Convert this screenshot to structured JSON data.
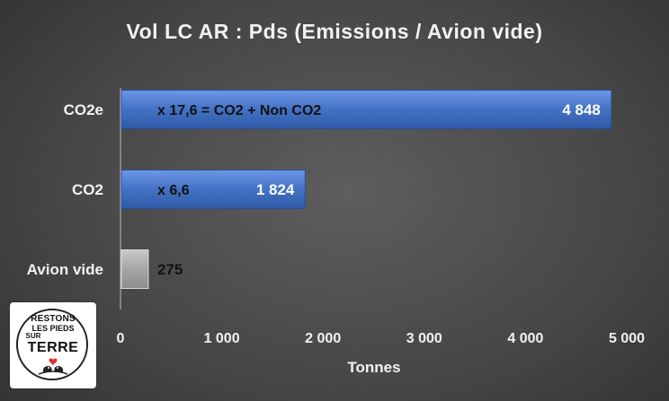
{
  "chart_data": {
    "type": "bar",
    "orientation": "horizontal",
    "title": "Vol LC AR : Pds (Emissions / Avion vide)",
    "xlabel": "Tonnes",
    "ylabel": "",
    "xlim": [
      0,
      5000
    ],
    "x_ticks": [
      0,
      1000,
      2000,
      3000,
      4000,
      5000
    ],
    "x_tick_labels": [
      "0",
      "1 000",
      "2 000",
      "3 000",
      "4 000",
      "5 000"
    ],
    "grid": false,
    "categories": [
      "CO2e",
      "CO2",
      "Avion vide"
    ],
    "values": [
      4848,
      1824,
      275
    ],
    "value_labels": [
      "4 848",
      "1 824",
      "275"
    ],
    "annotations": [
      "x 17,6  =  CO2 + Non CO2",
      "x 6,6",
      ""
    ],
    "colors": [
      "#4472c4",
      "#4472c4",
      "#a6a6a6"
    ]
  },
  "logo": {
    "line1": "RESTONS",
    "line2": "LES PIEDS",
    "line3": "SUR",
    "line4": "TERRE"
  }
}
